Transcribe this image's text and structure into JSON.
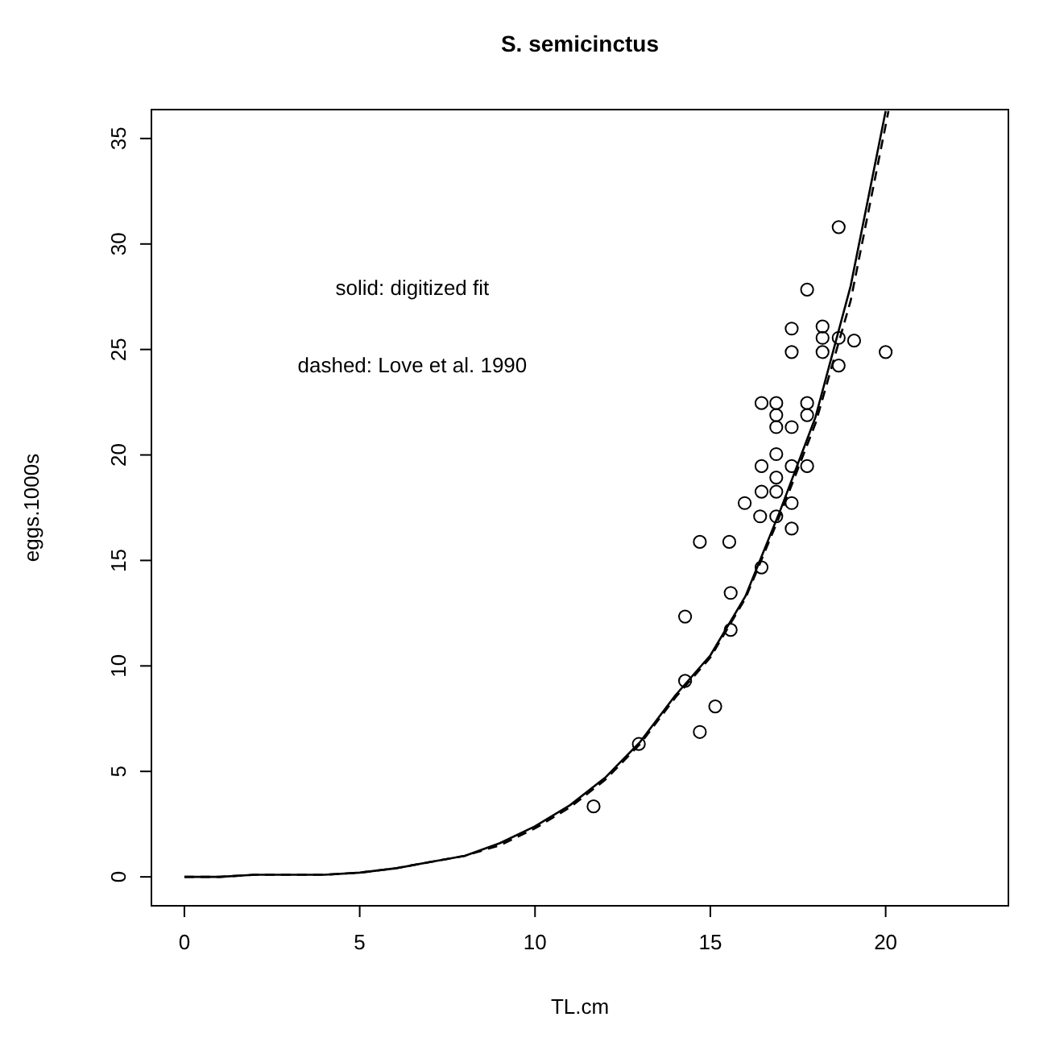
{
  "chart_data": {
    "type": "scatter",
    "title": "S. semicinctus",
    "xlabel": "TL.cm",
    "ylabel": "eggs.1000s",
    "annotations": [
      "solid: digitized fit",
      "dashed: Love et al. 1990"
    ],
    "xlim": [
      -0.94,
      23.5
    ],
    "ylim": [
      -1.37,
      36.37
    ],
    "xticks": [
      0,
      5,
      10,
      15,
      20
    ],
    "yticks": [
      0,
      5,
      10,
      15,
      20,
      25,
      30,
      35
    ],
    "grid": false,
    "series": [
      {
        "color": "#000000",
        "marker": "circle",
        "x": [
          11.67,
          12.96,
          14.28,
          14.28,
          14.7,
          14.7,
          15.14,
          15.54,
          15.58,
          15.58,
          15.98,
          16.42,
          16.46,
          16.46,
          16.46,
          16.46,
          16.88,
          16.88,
          16.88,
          16.88,
          16.88,
          16.88,
          16.88,
          17.32,
          17.32,
          17.32,
          17.32,
          17.32,
          17.32,
          17.76,
          17.76,
          17.76,
          17.76,
          18.2,
          18.2,
          18.2,
          18.66,
          18.66,
          18.66,
          19.1,
          20.0
        ],
        "values": [
          3.34,
          6.3,
          12.34,
          9.29,
          15.88,
          6.87,
          8.08,
          15.88,
          13.46,
          11.71,
          17.72,
          17.09,
          22.46,
          19.47,
          18.26,
          14.67,
          22.46,
          21.89,
          21.32,
          20.04,
          18.93,
          18.26,
          17.09,
          25.99,
          24.88,
          21.32,
          19.47,
          17.72,
          16.51,
          27.84,
          22.46,
          21.89,
          19.47,
          26.09,
          25.55,
          24.88,
          30.8,
          25.55,
          24.24,
          25.42,
          24.88
        ]
      },
      {
        "type": "line",
        "color": "#000000",
        "line_style": "solid",
        "x": [
          0,
          1,
          2,
          3,
          4,
          5,
          6,
          7,
          8,
          9,
          10,
          11,
          12,
          13,
          14,
          15,
          16,
          17,
          18,
          19,
          20.0
        ],
        "values": [
          0,
          0,
          0.1,
          0.1,
          0.1,
          0.2,
          0.4,
          0.7,
          1.0,
          1.6,
          2.4,
          3.4,
          4.7,
          6.4,
          8.6,
          10.5,
          13.3,
          17.4,
          21.8,
          28.0,
          36.3
        ]
      },
      {
        "type": "line",
        "color": "#000000",
        "line_style": "dashed",
        "x": [
          0,
          1,
          2,
          3,
          4,
          5,
          6,
          7,
          8,
          9,
          10,
          11,
          12,
          13,
          14,
          15,
          16,
          17,
          18,
          19,
          20.08
        ],
        "values": [
          0,
          0,
          0.1,
          0.1,
          0.1,
          0.2,
          0.4,
          0.7,
          1.0,
          1.5,
          2.3,
          3.3,
          4.6,
          6.3,
          8.5,
          10.4,
          13.2,
          17.2,
          21.5,
          27.3,
          36.3
        ]
      }
    ]
  }
}
